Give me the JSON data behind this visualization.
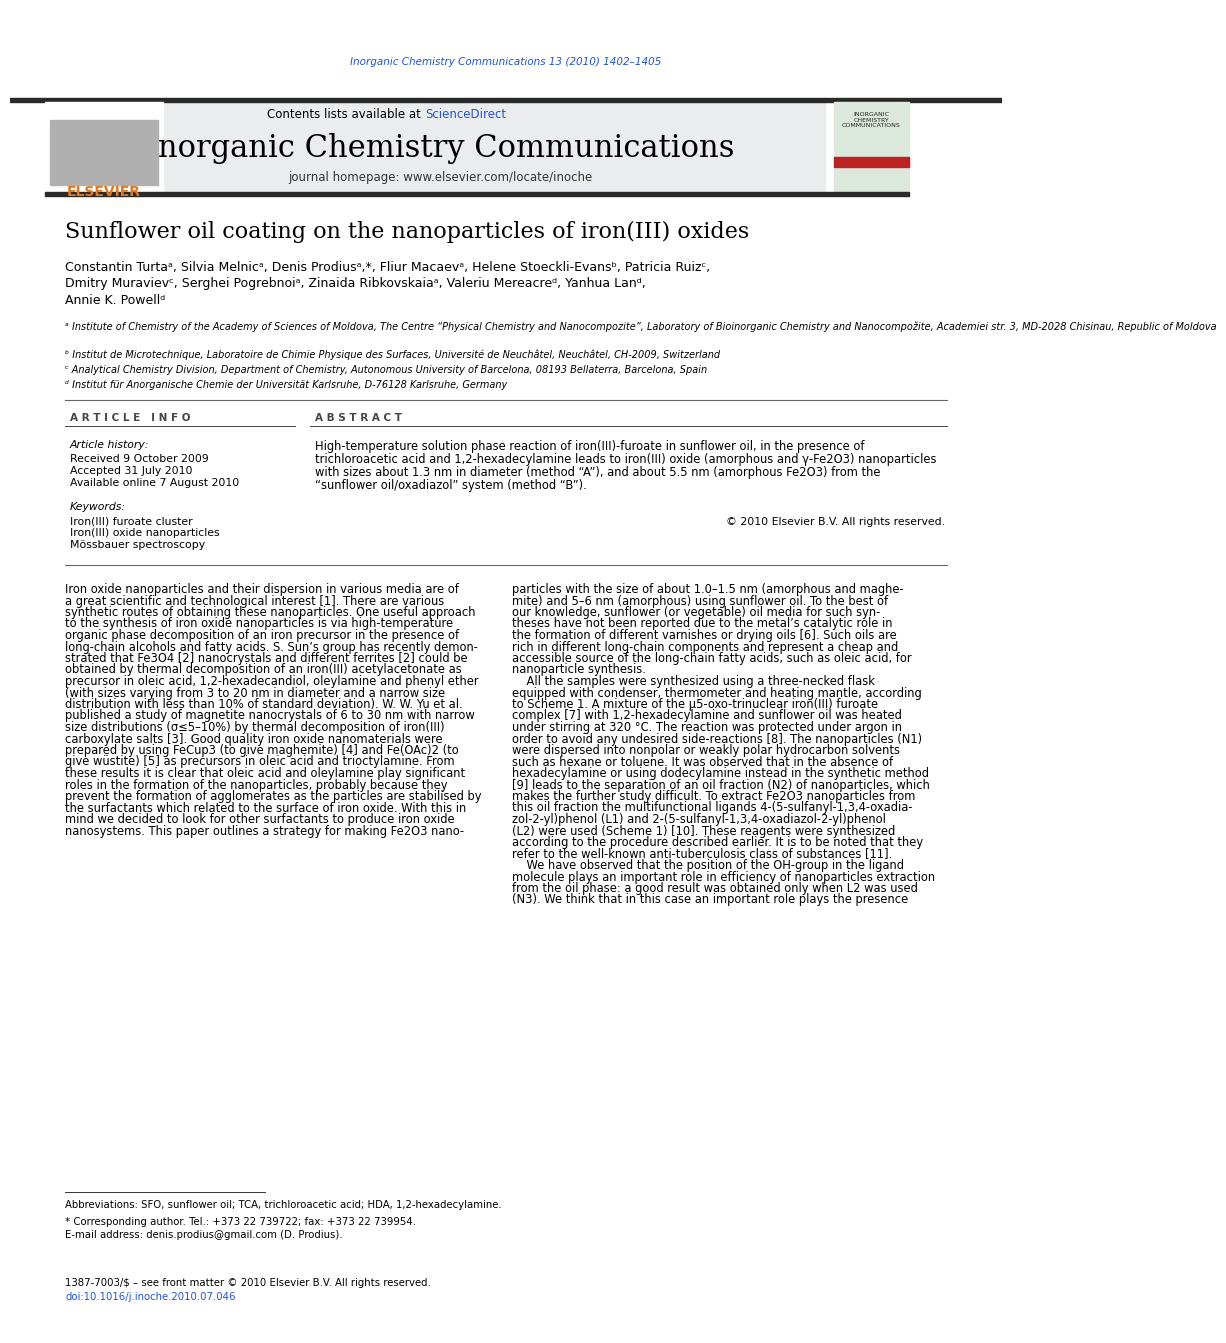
{
  "page_title_journal": "Inorganic Chemistry Communications 13 (2010) 1402–1405",
  "journal_name": "Inorganic Chemistry Communications",
  "journal_homepage": "journal homepage: www.elsevier.com/locate/inoche",
  "contents_line": "Contents lists available at ScienceDirect",
  "paper_title": "Sunflower oil coating on the nanoparticles of iron(III) oxides",
  "authors_line1": "Constantin Turtaᵃ, Silvia Melnicᵃ, Denis Prodiusᵃ,*, Fliur Macaevᵃ, Helene Stoeckli-Evansᵇ, Patricia Ruizᶜ,",
  "authors_line2": "Dmitry Muravievᶜ, Serghei Pogrebnoiᵃ, Zinaida Ribkovskaiaᵃ, Valeriu Mereacreᵈ, Yanhua Lanᵈ,",
  "authors_line3": "Annie K. Powellᵈ",
  "affil_a": "ᵃ Institute of Chemistry of the Academy of Sciences of Moldova, The Centre “Physical Chemistry and Nanocompozite”, Laboratory of Bioinorganic Chemistry and Nanocompožite, Academiei str. 3, MD-2028 Chisinau, Republic of Moldova",
  "affil_b": "ᵇ Institut de Microtechnique, Laboratoire de Chimie Physique des Surfaces, Université de Neuchâtel, Neuchâtel, CH-2009, Switzerland",
  "affil_c": "ᶜ Analytical Chemistry Division, Department of Chemistry, Autonomous University of Barcelona, 08193 Bellaterra, Barcelona, Spain",
  "affil_d": "ᵈ Institut für Anorganische Chemie der Universität Karlsruhe, D-76128 Karlsruhe, Germany",
  "article_info_header": "A R T I C L E   I N F O",
  "abstract_header": "A B S T R A C T",
  "article_history_label": "Article history:",
  "received": "Received 9 October 2009",
  "accepted": "Accepted 31 July 2010",
  "available": "Available online 7 August 2010",
  "keywords_label": "Keywords:",
  "keyword1": "Iron(III) furoate cluster",
  "keyword2": "Iron(III) oxide nanoparticles",
  "keyword3": "Mössbauer spectroscopy",
  "abstract_text": "High-temperature solution phase reaction of iron(III)-furoate in sunflower oil, in the presence of\ntrichloroacetic acid and 1,2-hexadecylamine leads to iron(III) oxide (amorphous and γ-Fe2O3) nanoparticles\nwith sizes about 1.3 nm in diameter (method “A”), and about 5.5 nm (amorphous Fe2O3) from the\n“sunflower oil/oxadiazol” system (method “B”).",
  "copyright": "© 2010 Elsevier B.V. All rights reserved.",
  "body_col1_lines": [
    "Iron oxide nanoparticles and their dispersion in various media are of",
    "a great scientific and technological interest [1]. There are various",
    "synthetic routes of obtaining these nanoparticles. One useful approach",
    "to the synthesis of iron oxide nanoparticles is via high-temperature",
    "organic phase decomposition of an iron precursor in the presence of",
    "long-chain alcohols and fatty acids. S. Sun’s group has recently demon-",
    "strated that Fe3O4 [2] nanocrystals and different ferrites [2] could be",
    "obtained by thermal decomposition of an iron(III) acetylacetonate as",
    "precursor in oleic acid, 1,2-hexadecandiol, oleylamine and phenyl ether",
    "(with sizes varying from 3 to 20 nm in diameter and a narrow size",
    "distribution with less than 10% of standard deviation). W. W. Yu et al.",
    "published a study of magnetite nanocrystals of 6 to 30 nm with narrow",
    "size distributions (σ≤5–10%) by thermal decomposition of iron(III)",
    "carboxylate salts [3]. Good quality iron oxide nanomaterials were",
    "prepared by using FeCup3 (to give maghemite) [4] and Fe(OAc)2 (to",
    "give wüstite) [5] as precursors in oleic acid and trioctylamine. From",
    "these results it is clear that oleic acid and oleylamine play significant",
    "roles in the formation of the nanoparticles, probably because they",
    "prevent the formation of agglomerates as the particles are stabilised by",
    "the surfactants which related to the surface of iron oxide. With this in",
    "mind we decided to look for other surfactants to produce iron oxide",
    "nanosystems. This paper outlines a strategy for making Fe2O3 nano-"
  ],
  "body_col2_lines": [
    "particles with the size of about 1.0–1.5 nm (amorphous and maghe-",
    "mite) and 5–6 nm (amorphous) using sunflower oil. To the best of",
    "our knowledge, sunflower (or vegetable) oil media for such syn-",
    "theses have not been reported due to the metal’s catalytic role in",
    "the formation of different varnishes or drying oils [6]. Such oils are",
    "rich in different long-chain components and represent a cheap and",
    "accessible source of the long-chain fatty acids, such as oleic acid, for",
    "nanoparticle synthesis.",
    "    All the samples were synthesized using a three-necked flask",
    "equipped with condenser, thermometer and heating mantle, according",
    "to Scheme 1. A mixture of the μ5-oxo-trinuclear iron(III) furoate",
    "complex [7] with 1,2-hexadecylamine and sunflower oil was heated",
    "under stirring at 320 °C. The reaction was protected under argon in",
    "order to avoid any undesired side-reactions [8]. The nanoparticles (N1)",
    "were dispersed into nonpolar or weakly polar hydrocarbon solvents",
    "such as hexane or toluene. It was observed that in the absence of",
    "hexadecylamine or using dodecylamine instead in the synthetic method",
    "[9] leads to the separation of an oil fraction (N2) of nanoparticles, which",
    "makes the further study difficult. To extract Fe2O3 nanoparticles from",
    "this oil fraction the multifunctional ligands 4-(5-sulfanyl-1,3,4-oxadia-",
    "zol-2-yl)phenol (L1) and 2-(5-sulfanyl-1,3,4-oxadiazol-2-yl)phenol",
    "(L2) were used (Scheme 1) [10]. These reagents were synthesized",
    "according to the procedure described earlier. It is to be noted that they",
    "refer to the well-known anti-tuberculosis class of substances [11].",
    "    We have observed that the position of the OH-group in the ligand",
    "molecule plays an important role in efficiency of nanoparticles extraction",
    "from the oil phase: a good result was obtained only when L2 was used",
    "(N3). We think that in this case an important role plays the presence"
  ],
  "footnote_abbrev": "Abbreviations: SFO, sunflower oil; TCA, trichloroacetic acid; HDA, 1,2-hexadecylamine.",
  "footnote_corresponding": "* Corresponding author. Tel.: +373 22 739722; fax: +373 22 739954.",
  "footnote_email": "E-mail address: denis.prodius@gmail.com (D. Prodius).",
  "footnote_issn": "1387-7003/$ – see front matter © 2010 Elsevier B.V. All rights reserved.",
  "footnote_doi": "doi:10.1016/j.inoche.2010.07.046",
  "bg_color": "#ffffff",
  "header_bg": "#e8ecf0",
  "elsevier_color": "#e07820",
  "blue_color": "#2255cc",
  "title_color": "#000000",
  "text_color": "#000000",
  "journal_title_fontsize": 22,
  "paper_title_fontsize": 16,
  "body_fontsize": 8.3,
  "small_fontsize": 7.5
}
